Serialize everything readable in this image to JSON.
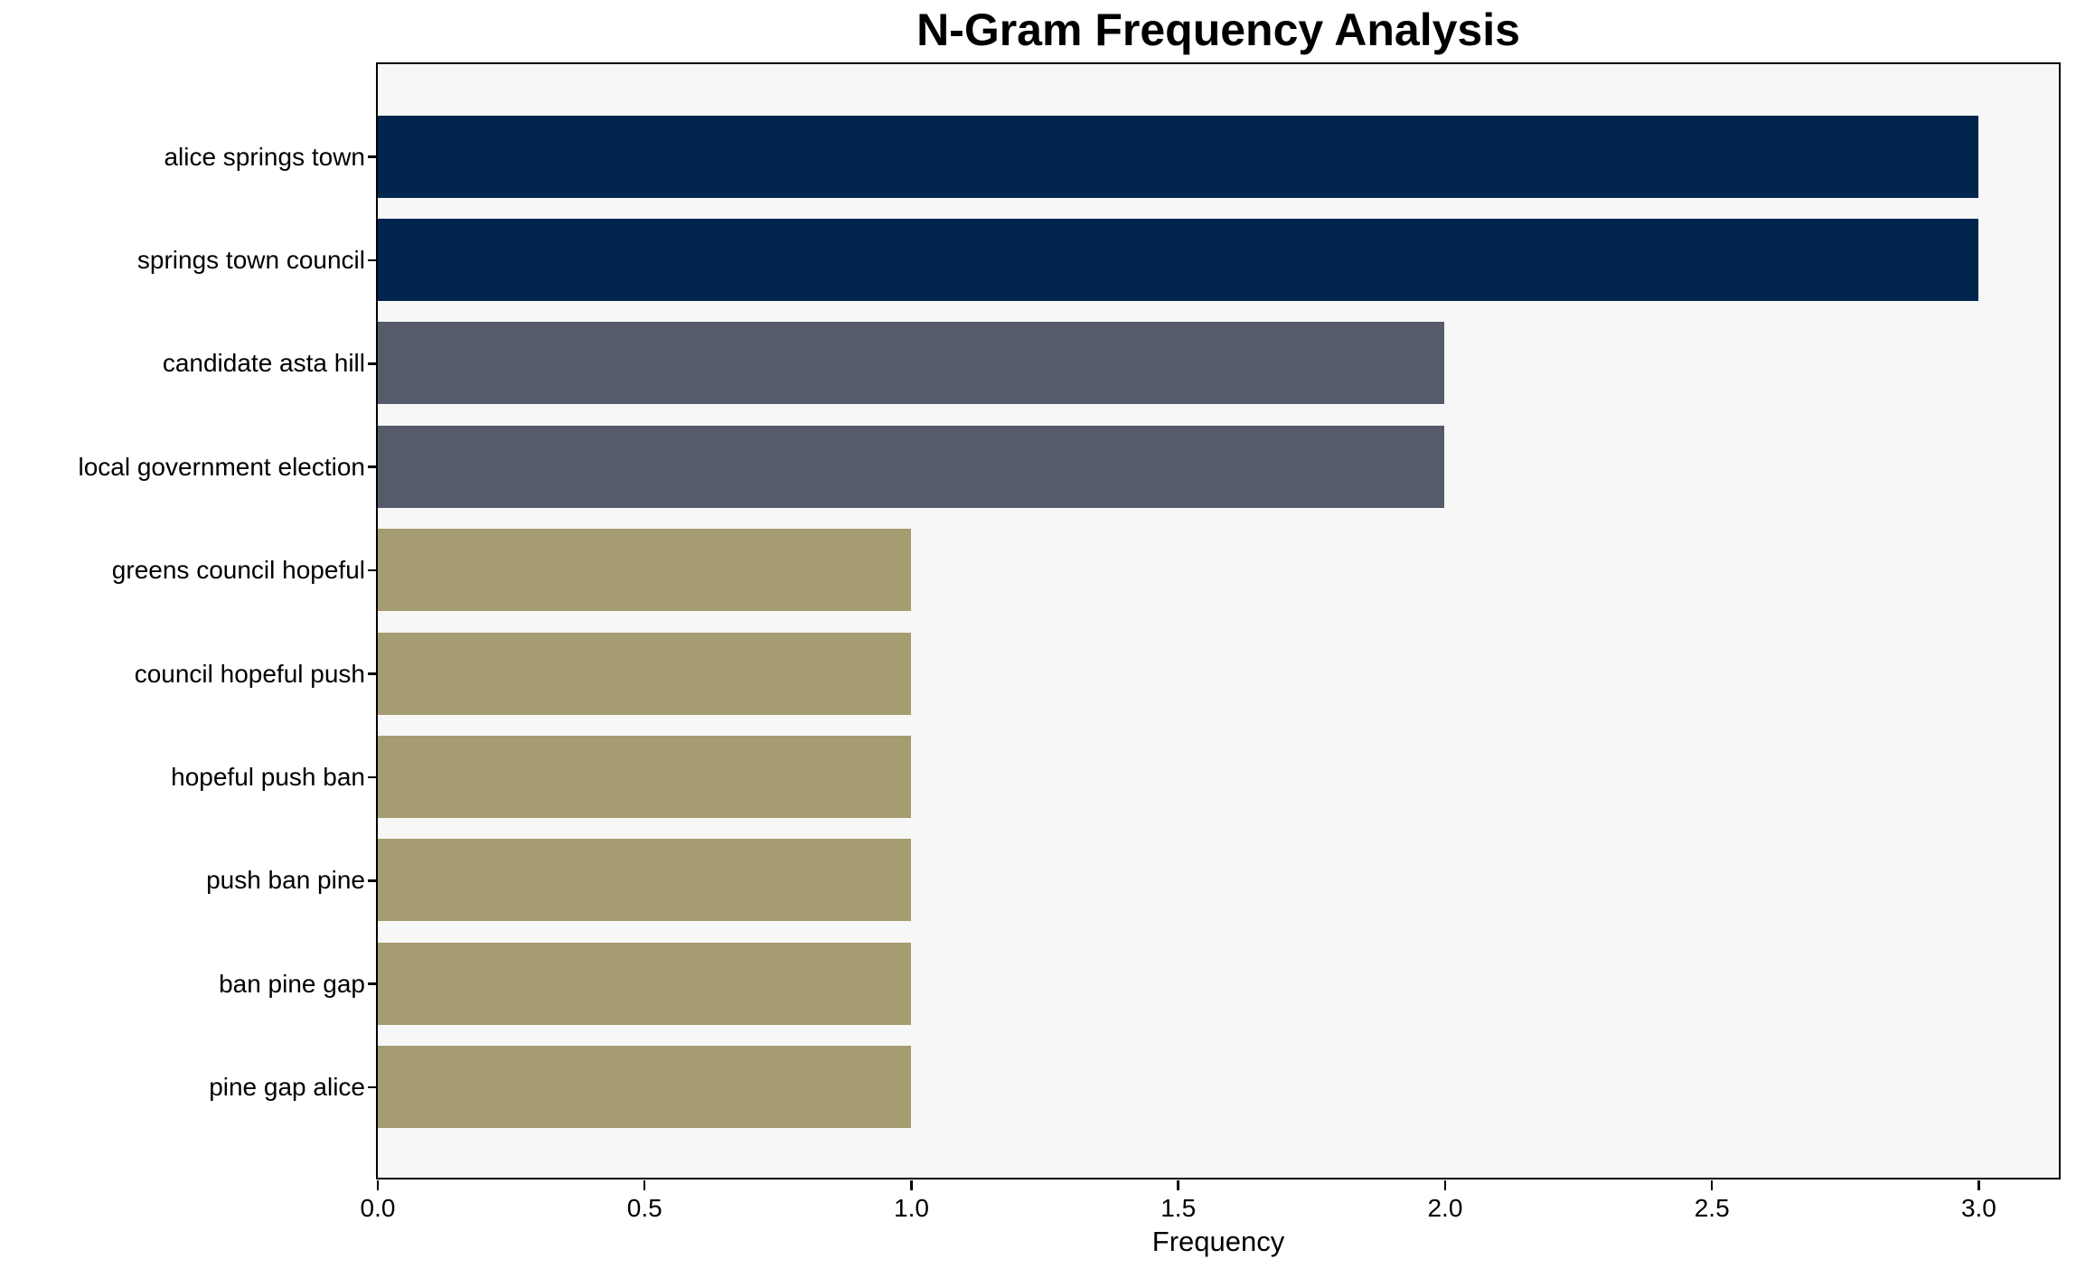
{
  "chart_data": {
    "type": "bar",
    "orientation": "horizontal",
    "title": "N-Gram Frequency Analysis",
    "xlabel": "Frequency",
    "ylabel": "",
    "categories": [
      "alice springs town",
      "springs town council",
      "candidate asta hill",
      "local government election",
      "greens council hopeful",
      "council hopeful push",
      "hopeful push ban",
      "push ban pine",
      "ban pine gap",
      "pine gap alice"
    ],
    "values": [
      3,
      3,
      2,
      2,
      1,
      1,
      1,
      1,
      1,
      1
    ],
    "bar_colors": [
      "#02254d",
      "#02254d",
      "#565b6a",
      "#565b6a",
      "#a59c71",
      "#a59c71",
      "#a59c71",
      "#a59c71",
      "#a59c71",
      "#a59c71"
    ],
    "xlim": [
      0,
      3.15
    ],
    "x_tick_values": [
      0,
      0.5,
      1,
      1.5,
      2,
      2.5,
      3
    ],
    "x_tick_labels": [
      "0.0",
      "0.5",
      "1.0",
      "1.5",
      "2.0",
      "2.5",
      "3.0"
    ],
    "grid": false,
    "legend": false,
    "plot_background": "#f7f7f7",
    "figure_background": "#ffffff",
    "spine_color": "#000000",
    "text_color": "#000000"
  }
}
